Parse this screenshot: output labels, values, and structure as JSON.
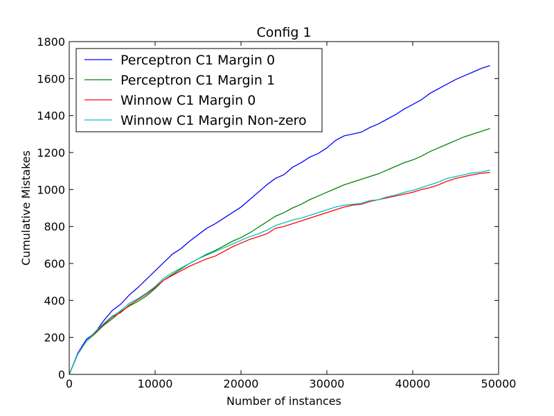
{
  "chart_data": {
    "type": "line",
    "title": "Config 1",
    "xlabel": "Number of instances",
    "ylabel": "Cumulative Mistakes",
    "xlim": [
      0,
      50000
    ],
    "ylim": [
      0,
      1800
    ],
    "xticks": [
      0,
      10000,
      20000,
      30000,
      40000,
      50000
    ],
    "yticks": [
      0,
      200,
      400,
      600,
      800,
      1000,
      1200,
      1400,
      1600,
      1800
    ],
    "xtick_labels": [
      "0",
      "10000",
      "20000",
      "30000",
      "40000",
      "50000"
    ],
    "ytick_labels": [
      "0",
      "200",
      "400",
      "600",
      "800",
      "1000",
      "1200",
      "1400",
      "1600",
      "1800"
    ],
    "grid": false,
    "legend_position": "top-left",
    "x": [
      0,
      1000,
      2000,
      3000,
      4000,
      5000,
      6000,
      7000,
      8000,
      9000,
      10000,
      11000,
      12000,
      13000,
      14000,
      15000,
      16000,
      17000,
      18000,
      19000,
      20000,
      21000,
      22000,
      23000,
      24000,
      25000,
      26000,
      27000,
      28000,
      29000,
      30000,
      31000,
      32000,
      33000,
      34000,
      35000,
      36000,
      37000,
      38000,
      39000,
      40000,
      41000,
      42000,
      43000,
      44000,
      45000,
      46000,
      47000,
      48000,
      49000
    ],
    "series": [
      {
        "name": "Perceptron C1 Margin 0",
        "color": "#0000ff",
        "values": [
          0,
          115,
          190,
          225,
          290,
          345,
          380,
          430,
          470,
          515,
          560,
          605,
          650,
          680,
          720,
          755,
          790,
          815,
          845,
          875,
          905,
          945,
          985,
          1025,
          1060,
          1080,
          1120,
          1145,
          1175,
          1195,
          1225,
          1265,
          1290,
          1300,
          1310,
          1335,
          1355,
          1380,
          1405,
          1435,
          1460,
          1485,
          1520,
          1545,
          1570,
          1595,
          1615,
          1635,
          1655,
          1670
        ]
      },
      {
        "name": "Perceptron C1 Margin 1",
        "color": "#008000",
        "values": [
          0,
          110,
          180,
          220,
          265,
          300,
          340,
          370,
          395,
          425,
          465,
          510,
          540,
          570,
          600,
          625,
          650,
          670,
          695,
          720,
          740,
          765,
          795,
          825,
          855,
          875,
          900,
          920,
          945,
          965,
          985,
          1005,
          1025,
          1040,
          1055,
          1070,
          1085,
          1105,
          1125,
          1145,
          1160,
          1180,
          1205,
          1225,
          1245,
          1265,
          1285,
          1300,
          1315,
          1330
        ]
      },
      {
        "name": "Winnow C1 Margin 0",
        "color": "#ff0000",
        "values": [
          0,
          110,
          180,
          225,
          270,
          310,
          335,
          375,
          405,
          435,
          470,
          510,
          535,
          560,
          585,
          605,
          625,
          640,
          665,
          690,
          710,
          730,
          745,
          760,
          790,
          800,
          815,
          830,
          845,
          860,
          875,
          890,
          905,
          915,
          920,
          935,
          945,
          955,
          965,
          975,
          985,
          1000,
          1010,
          1025,
          1045,
          1060,
          1070,
          1080,
          1088,
          1092
        ]
      },
      {
        "name": "Winnow C1 Margin Non-zero",
        "color": "#00bfbf",
        "values": [
          0,
          110,
          180,
          230,
          275,
          315,
          345,
          385,
          410,
          440,
          475,
          520,
          550,
          575,
          600,
          625,
          645,
          665,
          685,
          705,
          725,
          745,
          760,
          780,
          805,
          820,
          835,
          845,
          860,
          875,
          890,
          905,
          915,
          920,
          925,
          940,
          945,
          960,
          970,
          985,
          995,
          1010,
          1025,
          1040,
          1060,
          1070,
          1080,
          1090,
          1095,
          1105
        ]
      }
    ]
  }
}
